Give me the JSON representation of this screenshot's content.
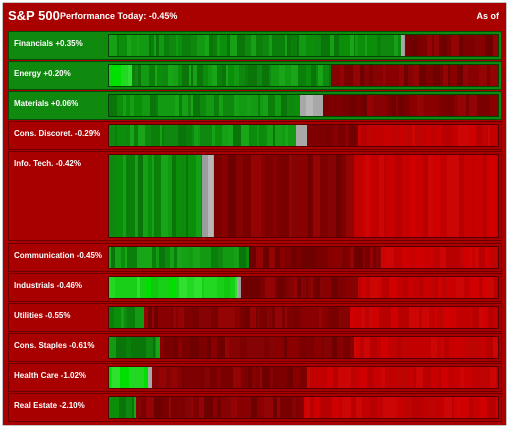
{
  "header": {
    "title": "S&P 500",
    "subtitle": "Performance Today: -0.45%",
    "as_of": "As of"
  },
  "colors": {
    "panel_bg": "#a90000",
    "positive_row": "#0f8a0f",
    "negative_row": "#a80000",
    "unchanged": "#b0b0b0"
  },
  "sectors": [
    {
      "label": "Financials +0.35%",
      "change_pct": 0.35,
      "segments": [
        {
          "color": "green",
          "fraction": 0.75
        },
        {
          "color": "gray",
          "fraction": 0.01
        },
        {
          "color": "darkred",
          "fraction": 0.24
        }
      ]
    },
    {
      "label": "Energy +0.20%",
      "change_pct": 0.2,
      "segments": [
        {
          "color": "brightgreen",
          "fraction": 0.06
        },
        {
          "color": "green",
          "fraction": 0.51
        },
        {
          "color": "darkred",
          "fraction": 0.43
        }
      ]
    },
    {
      "label": "Materials +0.06%",
      "change_pct": 0.06,
      "segments": [
        {
          "color": "green",
          "fraction": 0.49
        },
        {
          "color": "gray",
          "fraction": 0.06
        },
        {
          "color": "darkred",
          "fraction": 0.45
        }
      ]
    },
    {
      "label": "Cons. Discoret. -0.29%",
      "change_pct": -0.29,
      "segments": [
        {
          "color": "green",
          "fraction": 0.48
        },
        {
          "color": "gray",
          "fraction": 0.03
        },
        {
          "color": "darkred",
          "fraction": 0.13
        },
        {
          "color": "red",
          "fraction": 0.36
        }
      ]
    },
    {
      "label": "Info. Tech. -0.42%",
      "change_pct": -0.42,
      "segments": [
        {
          "color": "green",
          "fraction": 0.24
        },
        {
          "color": "gray",
          "fraction": 0.03
        },
        {
          "color": "darkred",
          "fraction": 0.36
        },
        {
          "color": "red",
          "fraction": 0.37
        }
      ]
    },
    {
      "label": "Communication -0.45%",
      "change_pct": -0.45,
      "segments": [
        {
          "color": "green",
          "fraction": 0.36
        },
        {
          "color": "darkred",
          "fraction": 0.34
        },
        {
          "color": "red",
          "fraction": 0.3
        }
      ]
    },
    {
      "label": "Industrials -0.46%",
      "change_pct": -0.46,
      "segments": [
        {
          "color": "brightgreen",
          "fraction": 0.33
        },
        {
          "color": "gray",
          "fraction": 0.01
        },
        {
          "color": "darkred",
          "fraction": 0.3
        },
        {
          "color": "red",
          "fraction": 0.36
        }
      ]
    },
    {
      "label": "Utilities -0.55%",
      "change_pct": -0.55,
      "segments": [
        {
          "color": "green",
          "fraction": 0.09
        },
        {
          "color": "darkred",
          "fraction": 0.53
        },
        {
          "color": "red",
          "fraction": 0.38
        }
      ]
    },
    {
      "label": "Cons. Staples -0.61%",
      "change_pct": -0.61,
      "segments": [
        {
          "color": "green",
          "fraction": 0.13
        },
        {
          "color": "darkred",
          "fraction": 0.5
        },
        {
          "color": "red",
          "fraction": 0.37
        }
      ]
    },
    {
      "label": "Health Care -1.02%",
      "change_pct": -1.02,
      "segments": [
        {
          "color": "brightgreen",
          "fraction": 0.1
        },
        {
          "color": "gray",
          "fraction": 0.01
        },
        {
          "color": "darkred",
          "fraction": 0.4
        },
        {
          "color": "red",
          "fraction": 0.49
        }
      ]
    },
    {
      "label": "Real Estate -2.10%",
      "change_pct": -2.1,
      "segments": [
        {
          "color": "green",
          "fraction": 0.07
        },
        {
          "color": "darkred",
          "fraction": 0.43
        },
        {
          "color": "red",
          "fraction": 0.5
        }
      ]
    }
  ]
}
